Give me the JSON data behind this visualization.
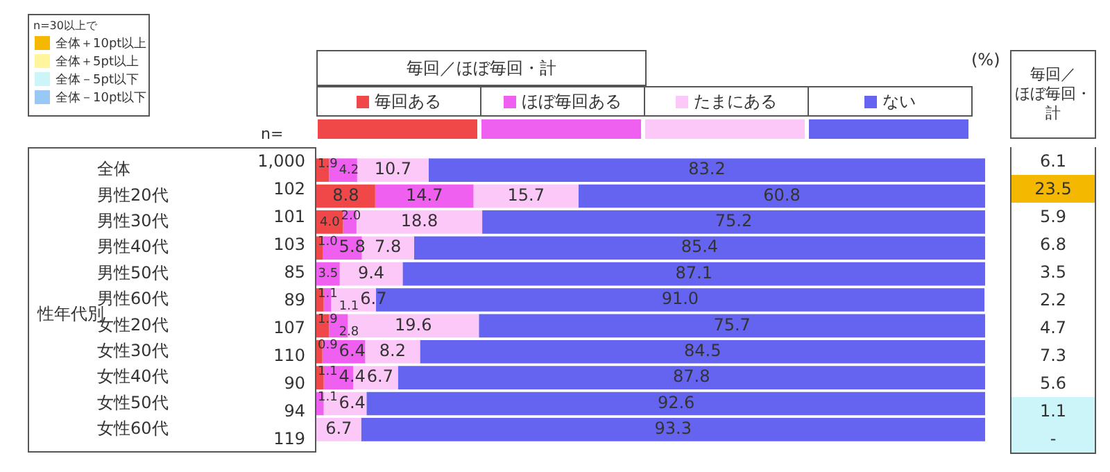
{
  "chart_data": [
    {
      "type": "bar",
      "orientation": "horizontal",
      "stacked": true,
      "legend": "top",
      "tick_labels": "y",
      "grid": false,
      "xlim": [
        0,
        100
      ],
      "title": "毎回／ほぼ毎回・計",
      "categories": [
        "全体",
        "男性20代",
        "男性30代",
        "男性40代",
        "男性50代",
        "男性60代",
        "女性20代",
        "女性30代",
        "女性40代",
        "女性50代",
        "女性60代"
      ],
      "series": [
        {
          "name": "毎回ある",
          "color": "#f04848",
          "values": [
            1.9,
            8.8,
            4.0,
            1.0,
            0,
            1.1,
            1.9,
            0.9,
            1.1,
            0,
            0
          ],
          "value_labels": [
            "1.9",
            "8.8",
            "4.0",
            "1.0",
            null,
            "1.1",
            "1.9",
            "0.9",
            "1.1",
            null,
            null
          ]
        },
        {
          "name": "ほぼ毎回ある",
          "color": "#f060f0",
          "values": [
            4.2,
            14.7,
            2.0,
            5.8,
            3.5,
            1.1,
            2.8,
            6.4,
            4.4,
            1.1,
            0
          ],
          "value_labels": [
            "4.2",
            "14.7",
            "2.0",
            "5.8",
            "3.5",
            "1.1",
            "2.8",
            "6.4",
            "4.4",
            "1.1",
            null
          ]
        },
        {
          "name": "たまにある",
          "color": "#fcc8f8",
          "values": [
            10.7,
            15.7,
            18.8,
            7.8,
            9.4,
            6.7,
            19.6,
            8.2,
            6.7,
            6.4,
            6.7
          ],
          "value_labels": [
            "10.7",
            "15.7",
            "18.8",
            "7.8",
            "9.4",
            "6.7",
            "19.6",
            "8.2",
            "6.7",
            "6.4",
            "6.7"
          ]
        },
        {
          "name": "ない",
          "color": "#6464f0",
          "values": [
            83.2,
            60.8,
            75.2,
            85.4,
            87.1,
            91.0,
            75.7,
            84.5,
            87.8,
            92.6,
            93.3
          ],
          "value_labels": [
            "83.2",
            "60.8",
            "75.2",
            "85.4",
            "87.1",
            "91.0",
            "75.7",
            "84.5",
            "87.8",
            "92.6",
            "93.3"
          ]
        }
      ],
      "annotations": [
        "性年代別",
        "n=",
        "1,000",
        "102",
        "101",
        "103",
        "85",
        "89",
        "107",
        "110",
        "90",
        "94",
        "119",
        "(%)"
      ]
    },
    {
      "type": "other",
      "title": "毎回／ほぼ毎回・計",
      "legend_title": "n=30以上で",
      "value_labels": [
        "6.1",
        "23.5",
        "5.9",
        "6.8",
        "3.5",
        "2.2",
        "4.7",
        "7.3",
        "5.6",
        "1.1",
        "-"
      ],
      "colors": [
        "#ffffff",
        "#f5b800",
        "#ffffff",
        "#ffffff",
        "#ffffff",
        "#ffffff",
        "#ffffff",
        "#ffffff",
        "#ffffff",
        "#ccf5fa",
        "#ccf5fa"
      ],
      "annotations": [
        "全体＋10pt以上",
        "全体＋5pt以上",
        "全体－5pt以下",
        "全体－10pt以下"
      ]
    }
  ]
}
